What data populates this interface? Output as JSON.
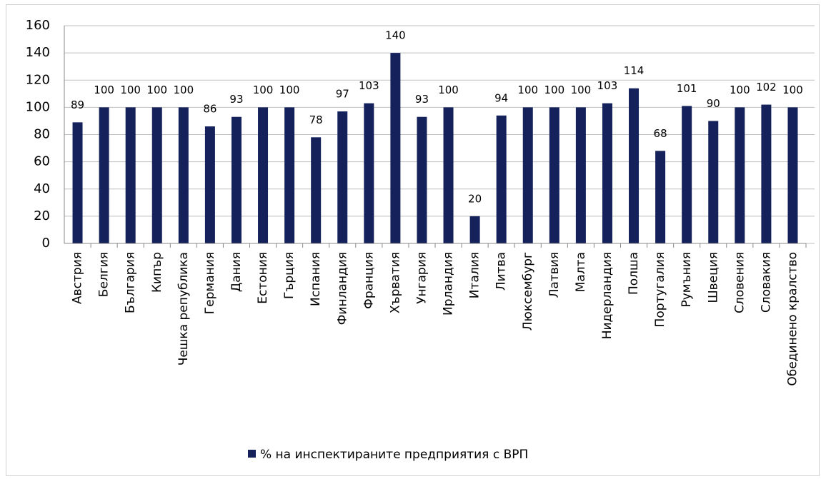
{
  "chart_data": {
    "type": "bar",
    "categories": [
      "Австрия",
      "Белгия",
      "България",
      "Кипър",
      "Чешка република",
      "Германия",
      "Дания",
      "Естония",
      "Гърция",
      "Испания",
      "Финландия",
      "Франция",
      "Хърватия",
      "Унгария",
      "Ирландия",
      "Италия",
      "Литва",
      "Люксембург",
      "Латвия",
      "Малта",
      "Нидерландия",
      "Полша",
      "Португалия",
      "Румъния",
      "Швеция",
      "Словения",
      "Словакия",
      "Обединено кралство"
    ],
    "series": [
      {
        "name": "% на инспектираните предприятия с ВРП",
        "color": "#14215b",
        "values": [
          89,
          100,
          100,
          100,
          100,
          86,
          93,
          100,
          100,
          78,
          97,
          103,
          140,
          93,
          100,
          20,
          94,
          100,
          100,
          100,
          103,
          114,
          68,
          101,
          90,
          100,
          102,
          100
        ]
      }
    ],
    "ylim": [
      0,
      160
    ],
    "yticks": [
      0,
      20,
      40,
      60,
      80,
      100,
      120,
      140,
      160
    ],
    "grid": true,
    "legend": "bottom"
  }
}
